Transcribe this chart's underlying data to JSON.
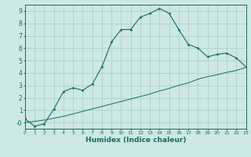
{
  "xlabel": "Humidex (Indice chaleur)",
  "ylabel": "",
  "background_color": "#cde8e5",
  "line_color": "#1a6b5e",
  "grid_color": "#aecfcc",
  "x_min": 0,
  "x_max": 23,
  "y_min": -0.5,
  "y_max": 9.5,
  "curve1_x": [
    0,
    1,
    2,
    3,
    4,
    5,
    6,
    7,
    8,
    9,
    10,
    11,
    12,
    13,
    14,
    15,
    16,
    17,
    18,
    19,
    20,
    21,
    22,
    23
  ],
  "curve1_y": [
    0.3,
    -0.3,
    -0.1,
    1.1,
    2.5,
    2.8,
    2.6,
    3.1,
    4.5,
    6.5,
    7.5,
    7.5,
    8.5,
    8.8,
    9.2,
    8.8,
    7.5,
    6.3,
    6.0,
    5.3,
    5.5,
    5.6,
    5.2,
    4.5
  ],
  "curve2_x": [
    0,
    1,
    2,
    3,
    4,
    5,
    6,
    7,
    8,
    9,
    10,
    11,
    12,
    13,
    14,
    15,
    16,
    17,
    18,
    19,
    20,
    21,
    22,
    23
  ],
  "curve2_y": [
    0.0,
    0.1,
    0.2,
    0.35,
    0.5,
    0.7,
    0.9,
    1.1,
    1.3,
    1.5,
    1.7,
    1.9,
    2.1,
    2.3,
    2.55,
    2.75,
    3.0,
    3.2,
    3.5,
    3.7,
    3.85,
    4.05,
    4.2,
    4.45
  ],
  "xtick_fontsize": 4.5,
  "ytick_fontsize": 5.5,
  "xlabel_fontsize": 6.5
}
